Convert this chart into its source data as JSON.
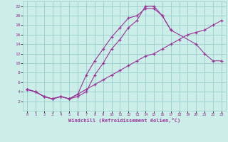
{
  "xlabel": "Windchill (Refroidissement éolien,°C)",
  "bg_color": "#cceee8",
  "grid_color": "#99cccc",
  "line_color": "#993399",
  "xlim": [
    -0.5,
    23.5
  ],
  "ylim": [
    0,
    23
  ],
  "xticks": [
    0,
    1,
    2,
    3,
    4,
    5,
    6,
    7,
    8,
    9,
    10,
    11,
    12,
    13,
    14,
    15,
    16,
    17,
    18,
    19,
    20,
    21,
    22,
    23
  ],
  "yticks": [
    2,
    4,
    6,
    8,
    10,
    12,
    14,
    16,
    18,
    20,
    22
  ],
  "line1_x": [
    0,
    1,
    2,
    3,
    4,
    5,
    6,
    7,
    8,
    9,
    10,
    11,
    12,
    13,
    14,
    15,
    16,
    17
  ],
  "line1_y": [
    4.5,
    4.0,
    3.0,
    2.5,
    3.0,
    2.5,
    3.5,
    7.5,
    10.5,
    13.0,
    15.5,
    17.5,
    19.5,
    20.0,
    21.5,
    21.5,
    20.0,
    17.0
  ],
  "line2_x": [
    0,
    1,
    2,
    3,
    4,
    5,
    6,
    7,
    8,
    9,
    10,
    11,
    12,
    13,
    14,
    15,
    16,
    17,
    20,
    21,
    22,
    23
  ],
  "line2_y": [
    4.5,
    4.0,
    3.0,
    2.5,
    3.0,
    2.5,
    3.0,
    4.0,
    7.5,
    10.0,
    13.0,
    15.0,
    17.5,
    19.0,
    22.0,
    22.0,
    20.0,
    17.0,
    14.0,
    12.0,
    10.5,
    10.5
  ],
  "line3_x": [
    0,
    1,
    2,
    3,
    4,
    5,
    6,
    7,
    8,
    9,
    10,
    11,
    12,
    13,
    14,
    15,
    16,
    17,
    18,
    19,
    20,
    21,
    22,
    23
  ],
  "line3_y": [
    4.5,
    4.0,
    3.0,
    2.5,
    3.0,
    2.5,
    3.5,
    4.5,
    5.5,
    6.5,
    7.5,
    8.5,
    9.5,
    10.5,
    11.5,
    12.0,
    13.0,
    14.0,
    15.0,
    16.0,
    16.5,
    17.0,
    18.0,
    19.0
  ]
}
